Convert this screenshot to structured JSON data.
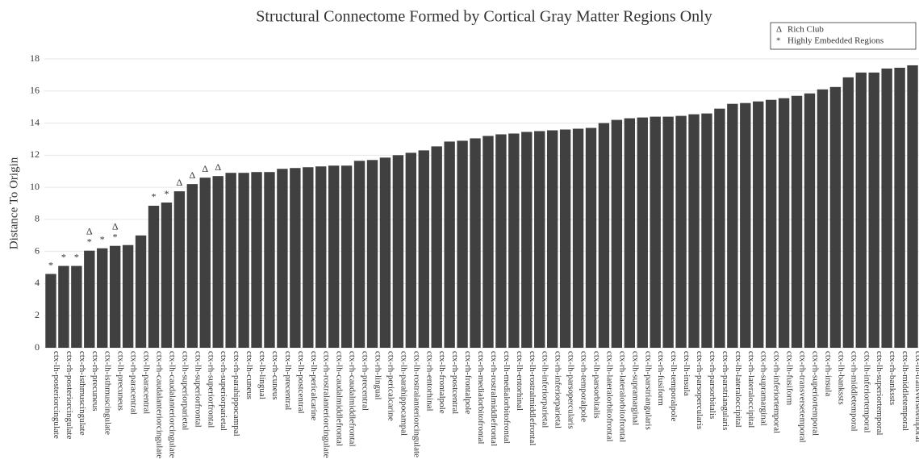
{
  "chart_data": {
    "type": "bar",
    "title": "Structural Connectome Formed by Cortical Gray Matter Regions Only",
    "y_label": "Distance To Origin",
    "categories": [
      "ctx-lh-posteriorcingulate",
      "ctx-rh-posteriorcingulate",
      "ctx-rh-isthmuscingulate",
      "ctx-rh-precuneus",
      "ctx-lh-isthmuscingulate",
      "ctx-lh-precuneus",
      "ctx-rh-paracentral",
      "ctx-lh-paracentral",
      "ctx-rh-caudalanteriorcingulate",
      "ctx-lh-caudalanteriorcingulate",
      "ctx-lh-superiorparietal",
      "ctx-lh-superiorfrontal",
      "ctx-rh-superiorfrontal",
      "ctx-rh-superiorparietal",
      "ctx-rh-parahippocampal",
      "ctx-lh-cuneus",
      "ctx-lh-lingual",
      "ctx-rh-cuneus",
      "ctx-lh-precentral",
      "ctx-lh-postcentral",
      "ctx-lh-pericalcarine",
      "ctx-rh-rostralanteriorcingulate",
      "ctx-lh-caudalmiddlefrontal",
      "ctx-rh-caudalmiddlefrontal",
      "ctx-rh-precentral",
      "ctx-rh-lingual",
      "ctx-rh-pericalcarine",
      "ctx-lh-parahippocampal",
      "ctx-lh-rostralanteriorcingulate",
      "ctx-rh-entorhinal",
      "ctx-lh-frontalpole",
      "ctx-rh-postcentral",
      "ctx-rh-frontalpole",
      "ctx-rh-medialorbitofrontal",
      "ctx-rh-rostralmiddlefrontal",
      "ctx-lh-medialorbitofrontal",
      "ctx-lh-entorhinal",
      "ctx-lh-rostralmiddlefrontal",
      "ctx-lh-inferiorparietal",
      "ctx-rh-inferiorparietal",
      "ctx-lh-parsopercularis",
      "ctx-rh-temporalpole",
      "ctx-lh-parsorbitalis",
      "ctx-lh-lateralorbitofrontal",
      "ctx-rh-lateralorbitofrontal",
      "ctx-lh-supramarginal",
      "ctx-lh-parstriangularis",
      "ctx-rh-fusiform",
      "ctx-lh-temporalpole",
      "ctx-lh-insula",
      "ctx-rh-parsopercularis",
      "ctx-rh-parsorbitalis",
      "ctx-rh-parstriangularis",
      "ctx-lh-lateraloccipital",
      "ctx-rh-lateraloccipital",
      "ctx-rh-supramarginal",
      "ctx-rh-inferiortemporal",
      "ctx-lh-fusiform",
      "ctx-rh-transversetemporal",
      "ctx-rh-superiortemporal",
      "ctx-rh-insula",
      "ctx-lh-bankssts",
      "ctx-rh-middletemporal",
      "ctx-lh-inferiortemporal",
      "ctx-lh-superiortemporal",
      "ctx-rh-bankssts",
      "ctx-lh-middletemporal",
      "ctx-lh-transversetemporal"
    ],
    "values": [
      4.6,
      5.1,
      5.1,
      6.05,
      6.2,
      6.35,
      6.4,
      7.0,
      8.85,
      9.05,
      9.75,
      10.2,
      10.6,
      10.7,
      10.9,
      10.9,
      10.95,
      10.95,
      11.15,
      11.2,
      11.25,
      11.3,
      11.35,
      11.35,
      11.65,
      11.7,
      11.85,
      12.0,
      12.15,
      12.3,
      12.55,
      12.85,
      12.9,
      13.05,
      13.2,
      13.3,
      13.35,
      13.45,
      13.5,
      13.55,
      13.6,
      13.65,
      13.7,
      14.0,
      14.2,
      14.3,
      14.35,
      14.4,
      14.4,
      14.45,
      14.55,
      14.6,
      14.9,
      15.2,
      15.25,
      15.35,
      15.45,
      15.55,
      15.7,
      15.85,
      16.1,
      16.25,
      16.85,
      17.15,
      17.15,
      17.4,
      17.45,
      17.6
    ],
    "markers": [
      [
        "*"
      ],
      [
        "*"
      ],
      [
        "*"
      ],
      [
        "Δ",
        "*"
      ],
      [
        "*"
      ],
      [
        "Δ",
        "*"
      ],
      [],
      [],
      [
        "*"
      ],
      [
        "*"
      ],
      [
        "Δ"
      ],
      [
        "Δ"
      ],
      [
        "Δ"
      ],
      [
        "Δ"
      ],
      [],
      [],
      [],
      [],
      [],
      [],
      [],
      [],
      [],
      [],
      [],
      [],
      [],
      [],
      [],
      [],
      [],
      [],
      [],
      [],
      [],
      [],
      [],
      [],
      [],
      [],
      [],
      [],
      [],
      [],
      [],
      [],
      [],
      [],
      [],
      [],
      [],
      [],
      [],
      [],
      [],
      [],
      [],
      [],
      [],
      [],
      [],
      [],
      [],
      [],
      [],
      [],
      [],
      []
    ],
    "legend": [
      {
        "symbol": "Δ",
        "label": "Rich Club"
      },
      {
        "symbol": "*",
        "label": "Highly Embedded Regions"
      }
    ],
    "color": "#404040",
    "ylim": [
      0,
      18
    ],
    "yticks": [
      0,
      2,
      4,
      6,
      8,
      10,
      12,
      14,
      16,
      18
    ],
    "grid": true
  }
}
